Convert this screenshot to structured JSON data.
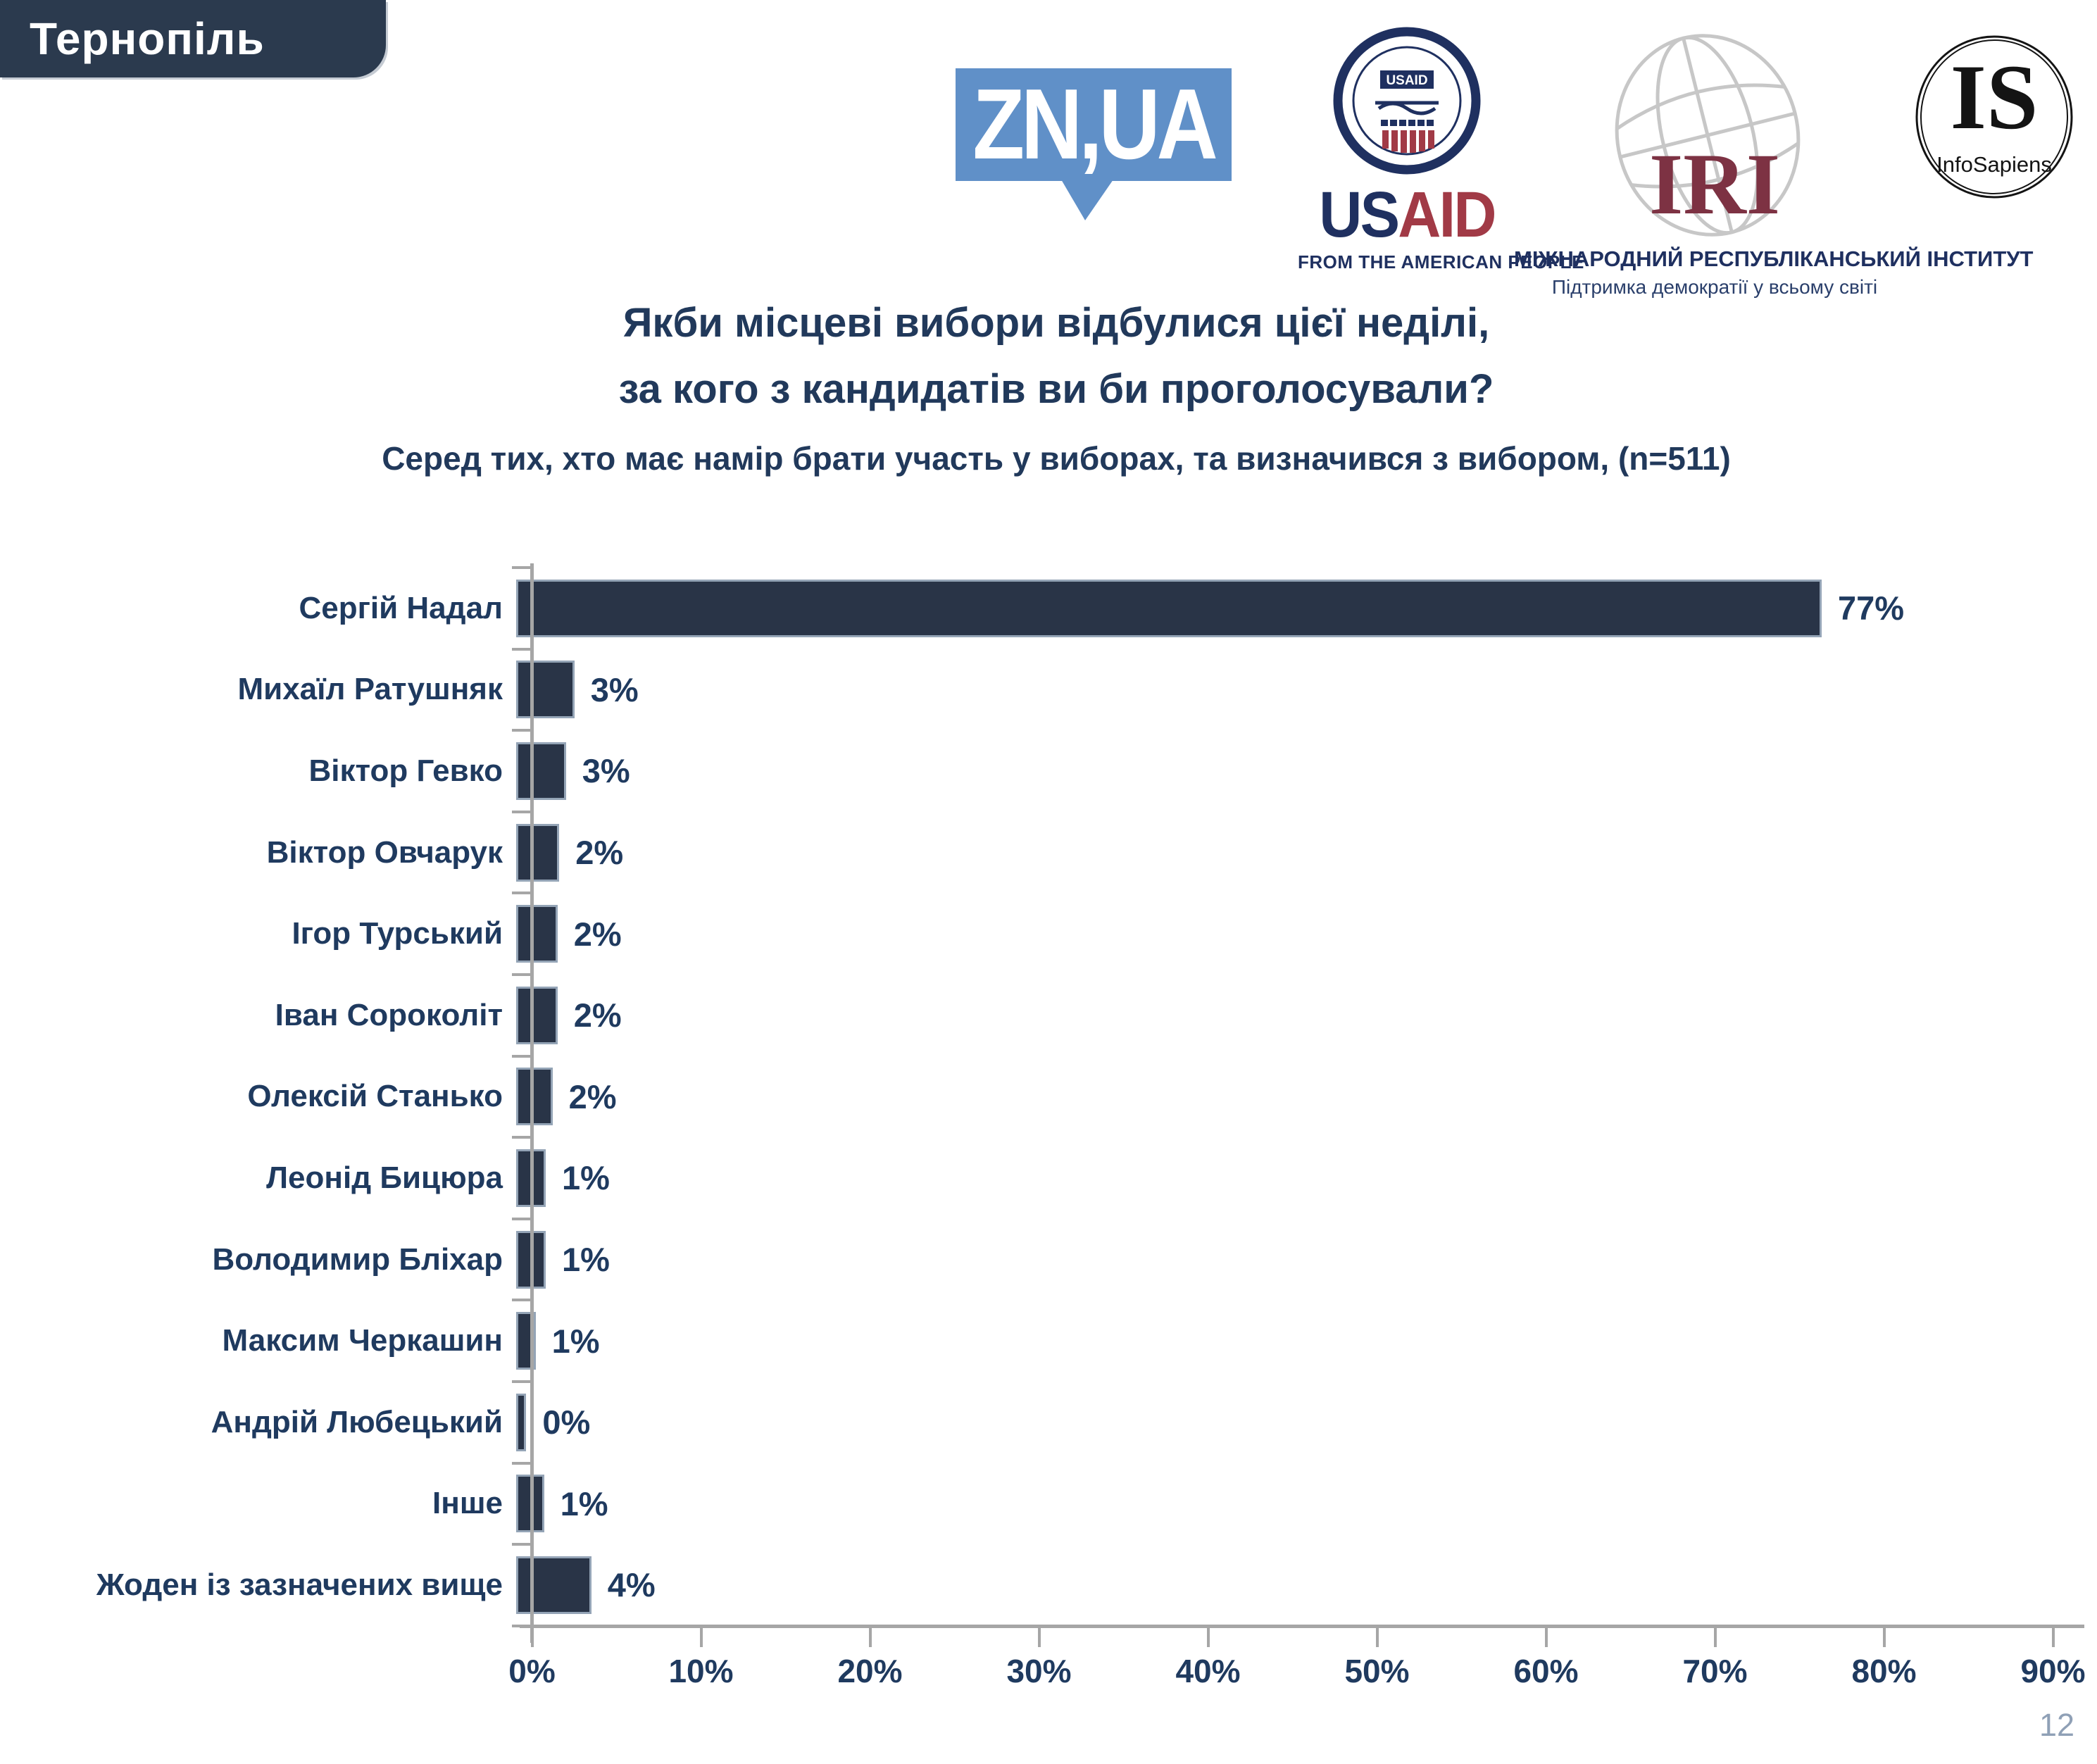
{
  "badge": {
    "label": "Тернопіль"
  },
  "logos": {
    "znua": {
      "text": "ZN,UA"
    },
    "usaid": {
      "seal_label": "USAID",
      "wordmark_us": "US",
      "wordmark_aid": "AID",
      "tagline": "FROM THE AMERICAN PEOPLE"
    },
    "iri": {
      "acronym": "IRI",
      "line1": "МІЖНАРОДНИЙ РЕСПУБЛІКАНСЬКИЙ ІНСТИТУТ",
      "line2": "Підтримка демократії у всьому світі"
    },
    "infosapiens": {
      "acronym": "IS",
      "name": "InfoSapiens"
    }
  },
  "title": {
    "line1": "Якби місцеві вибори відбулися цієї неділі,",
    "line2": "за кого з кандидатів ви би проголосували?"
  },
  "subtitle": "Серед тих, хто має намір брати участь у виборах, та визначився з вибором, (n=511)",
  "chart_data": {
    "type": "bar",
    "orientation": "horizontal",
    "title": "Якби місцеві вибори відбулися цієї неділі, за кого з кандидатів ви би проголосували?",
    "subtitle": "Серед тих, хто має намір брати участь у виборах, та визначився з вибором, (n=511)",
    "categories": [
      "Сергій Надал",
      "Михаїл Ратушняк",
      "Віктор Гевко",
      "Віктор Овчарук",
      "Ігор Турський",
      "Іван Сороколіт",
      "Олексій Станько",
      "Леонід Бицюра",
      "Володимир Бліхар",
      "Максим Черкашин",
      "Андрій Любецький",
      "Інше",
      "Жоден із зазначених вище"
    ],
    "values": [
      77,
      3,
      3,
      2,
      2,
      2,
      2,
      1,
      1,
      1,
      0,
      1,
      4
    ],
    "value_labels": [
      "77%",
      "3%",
      "3%",
      "2%",
      "2%",
      "2%",
      "2%",
      "1%",
      "1%",
      "1%",
      "0%",
      "1%",
      "4%"
    ],
    "visual_lengths_pct": [
      77,
      3.2,
      2.7,
      2.3,
      2.2,
      2.2,
      1.9,
      1.5,
      1.5,
      0.9,
      0.35,
      1.4,
      4.2
    ],
    "xlim": [
      0,
      90
    ],
    "x_tick_labels": [
      "0%",
      "10%",
      "20%",
      "30%",
      "40%",
      "50%",
      "60%",
      "70%",
      "80%",
      "90%"
    ],
    "grid": false,
    "legend": false,
    "bar_color": "#293447",
    "text_color": "#1f3a5f",
    "axis_color": "#a6a6a6"
  },
  "page": {
    "number": "12"
  },
  "colors": {
    "badge_bg": "#2b3a4e",
    "zn_blue": "#6090c8",
    "usaid_navy": "#1f3060",
    "usaid_red": "#a13a46",
    "iri_maroon": "#7d3243",
    "page_number": "#8fa0b6"
  }
}
